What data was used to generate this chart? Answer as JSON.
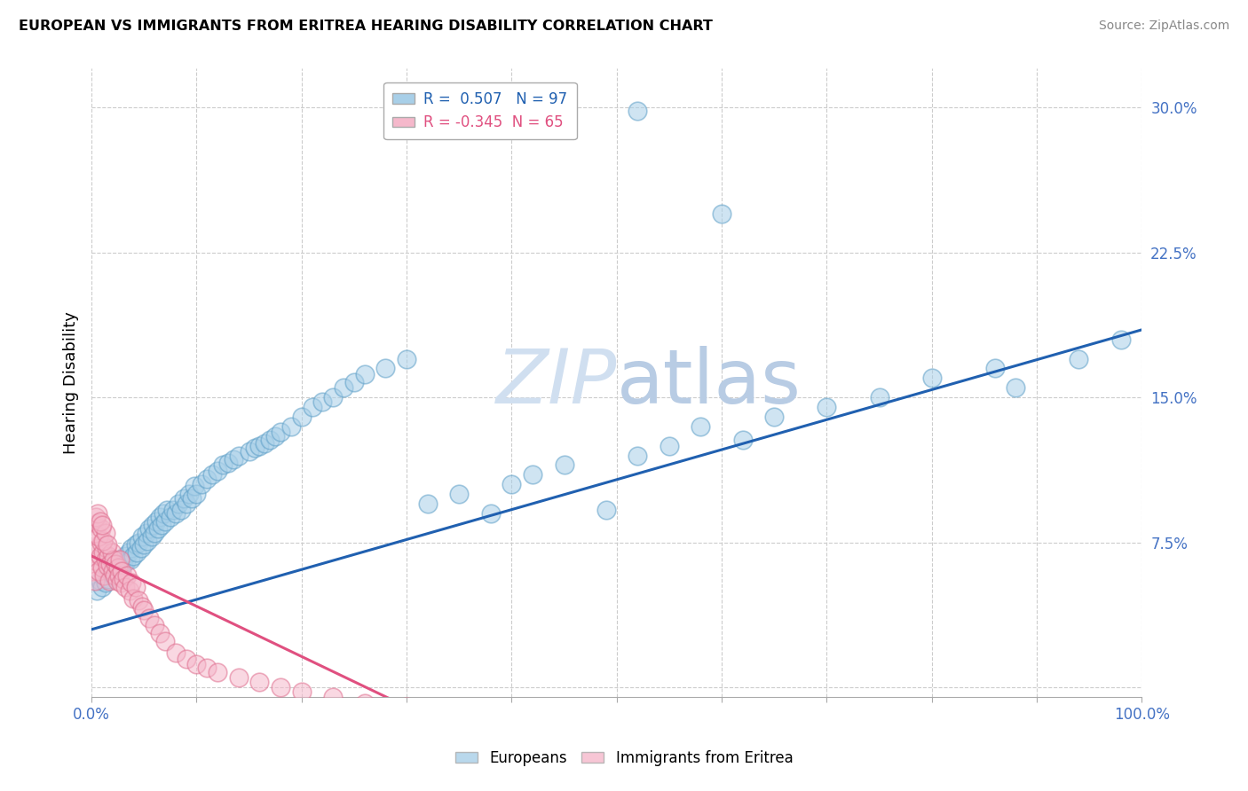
{
  "title": "EUROPEAN VS IMMIGRANTS FROM ERITREA HEARING DISABILITY CORRELATION CHART",
  "source": "Source: ZipAtlas.com",
  "ylabel": "Hearing Disability",
  "xlim": [
    0.0,
    1.0
  ],
  "ylim": [
    -0.005,
    0.32
  ],
  "xticks": [
    0.0,
    0.1,
    0.2,
    0.3,
    0.4,
    0.5,
    0.6,
    0.7,
    0.8,
    0.9,
    1.0
  ],
  "yticks": [
    0.0,
    0.075,
    0.15,
    0.225,
    0.3
  ],
  "r_european": 0.507,
  "n_european": 97,
  "r_eritrea": -0.345,
  "n_eritrea": 65,
  "blue_color": "#a8cfe8",
  "blue_edge_color": "#5fa0c8",
  "pink_color": "#f5b8cb",
  "pink_edge_color": "#e07090",
  "blue_line_color": "#2060b0",
  "pink_line_color": "#e05080",
  "watermark_color": "#d0dff0",
  "background_color": "#ffffff",
  "grid_color": "#cccccc",
  "axis_color": "#4472C4",
  "blue_scatter_x": [
    0.005,
    0.008,
    0.01,
    0.012,
    0.013,
    0.015,
    0.016,
    0.018,
    0.02,
    0.022,
    0.023,
    0.025,
    0.026,
    0.028,
    0.03,
    0.032,
    0.033,
    0.035,
    0.037,
    0.038,
    0.04,
    0.042,
    0.043,
    0.045,
    0.047,
    0.048,
    0.05,
    0.052,
    0.053,
    0.055,
    0.057,
    0.058,
    0.06,
    0.062,
    0.063,
    0.065,
    0.067,
    0.068,
    0.07,
    0.072,
    0.075,
    0.078,
    0.08,
    0.083,
    0.085,
    0.088,
    0.09,
    0.093,
    0.095,
    0.098,
    0.1,
    0.105,
    0.11,
    0.115,
    0.12,
    0.125,
    0.13,
    0.135,
    0.14,
    0.15,
    0.155,
    0.16,
    0.165,
    0.17,
    0.175,
    0.18,
    0.19,
    0.2,
    0.21,
    0.22,
    0.23,
    0.24,
    0.25,
    0.26,
    0.28,
    0.3,
    0.32,
    0.35,
    0.38,
    0.4,
    0.42,
    0.45,
    0.49,
    0.52,
    0.55,
    0.58,
    0.62,
    0.65,
    0.7,
    0.75,
    0.8,
    0.86,
    0.88,
    0.94,
    0.98,
    0.52,
    0.6
  ],
  "blue_scatter_y": [
    0.05,
    0.055,
    0.052,
    0.058,
    0.054,
    0.06,
    0.056,
    0.062,
    0.058,
    0.06,
    0.064,
    0.06,
    0.066,
    0.062,
    0.064,
    0.068,
    0.065,
    0.07,
    0.066,
    0.072,
    0.068,
    0.074,
    0.07,
    0.075,
    0.072,
    0.078,
    0.074,
    0.08,
    0.076,
    0.082,
    0.078,
    0.084,
    0.08,
    0.086,
    0.082,
    0.088,
    0.084,
    0.09,
    0.086,
    0.092,
    0.088,
    0.092,
    0.09,
    0.095,
    0.092,
    0.098,
    0.095,
    0.1,
    0.098,
    0.104,
    0.1,
    0.105,
    0.108,
    0.11,
    0.112,
    0.115,
    0.116,
    0.118,
    0.12,
    0.122,
    0.124,
    0.125,
    0.126,
    0.128,
    0.13,
    0.132,
    0.135,
    0.14,
    0.145,
    0.148,
    0.15,
    0.155,
    0.158,
    0.162,
    0.165,
    0.17,
    0.095,
    0.1,
    0.09,
    0.105,
    0.11,
    0.115,
    0.092,
    0.12,
    0.125,
    0.135,
    0.128,
    0.14,
    0.145,
    0.15,
    0.16,
    0.165,
    0.155,
    0.17,
    0.18,
    0.298,
    0.245
  ],
  "pink_scatter_x": [
    0.002,
    0.003,
    0.004,
    0.005,
    0.006,
    0.007,
    0.008,
    0.009,
    0.01,
    0.011,
    0.012,
    0.013,
    0.014,
    0.015,
    0.016,
    0.017,
    0.018,
    0.019,
    0.02,
    0.021,
    0.022,
    0.023,
    0.024,
    0.025,
    0.026,
    0.027,
    0.028,
    0.029,
    0.03,
    0.032,
    0.034,
    0.036,
    0.038,
    0.04,
    0.042,
    0.045,
    0.048,
    0.05,
    0.055,
    0.06,
    0.065,
    0.07,
    0.08,
    0.09,
    0.1,
    0.11,
    0.12,
    0.14,
    0.16,
    0.18,
    0.2,
    0.23,
    0.26,
    0.3,
    0.003,
    0.005,
    0.007,
    0.009,
    0.011,
    0.013,
    0.015,
    0.004,
    0.006,
    0.008,
    0.01
  ],
  "pink_scatter_y": [
    0.06,
    0.055,
    0.07,
    0.065,
    0.072,
    0.06,
    0.068,
    0.075,
    0.062,
    0.07,
    0.058,
    0.066,
    0.072,
    0.063,
    0.068,
    0.055,
    0.064,
    0.07,
    0.06,
    0.066,
    0.058,
    0.064,
    0.055,
    0.062,
    0.058,
    0.066,
    0.054,
    0.06,
    0.056,
    0.052,
    0.058,
    0.05,
    0.054,
    0.046,
    0.052,
    0.045,
    0.042,
    0.04,
    0.036,
    0.032,
    0.028,
    0.024,
    0.018,
    0.015,
    0.012,
    0.01,
    0.008,
    0.005,
    0.003,
    0.0,
    -0.002,
    -0.005,
    -0.008,
    -0.01,
    0.08,
    0.085,
    0.078,
    0.082,
    0.076,
    0.08,
    0.074,
    0.088,
    0.09,
    0.086,
    0.084
  ],
  "blue_line_x": [
    0.0,
    1.0
  ],
  "blue_line_y": [
    0.03,
    0.185
  ],
  "pink_line_x": [
    0.0,
    0.3
  ],
  "pink_line_y": [
    0.068,
    -0.01
  ]
}
